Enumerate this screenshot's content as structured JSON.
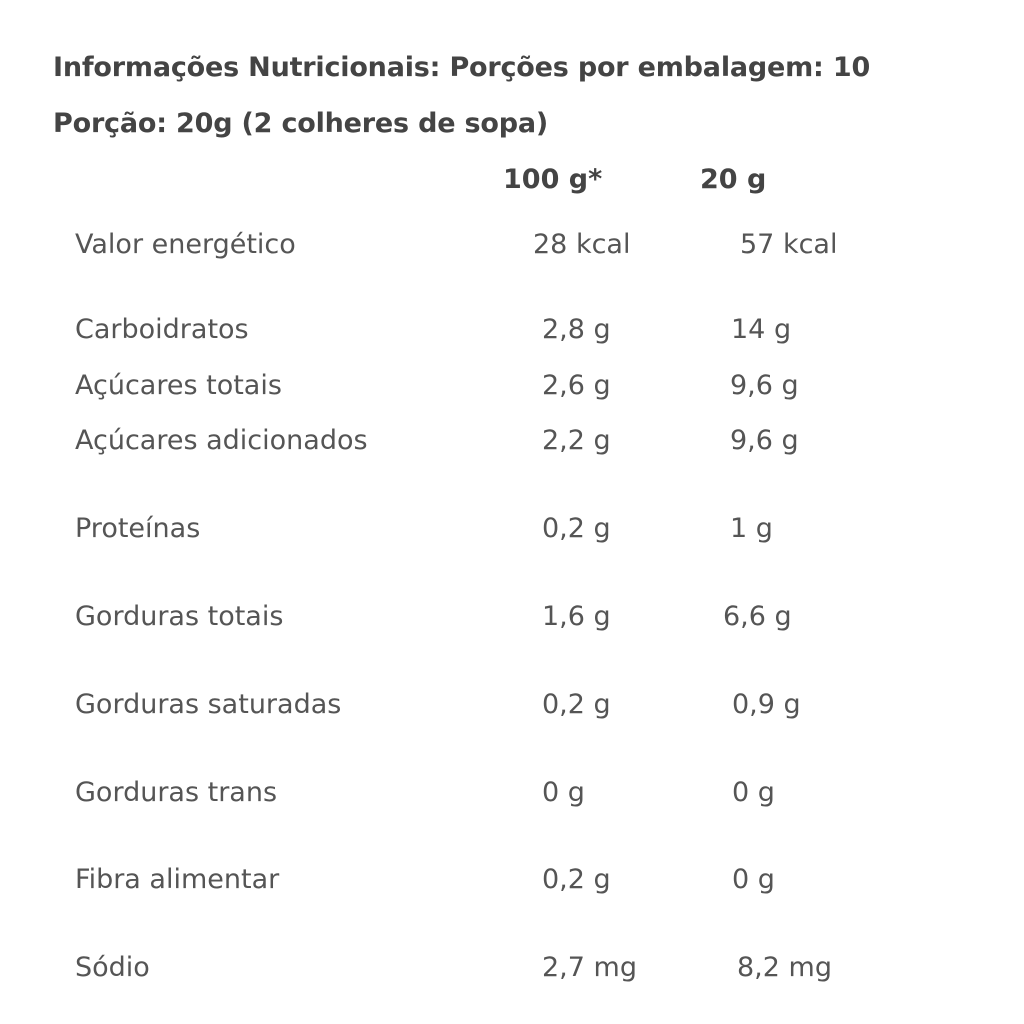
{
  "header": {
    "title": "Informações Nutricionais: Porções por embalagem: 10",
    "serving": "Porção: 20g (2 colheres de sopa)"
  },
  "columns": {
    "per_100": "100 g*",
    "per_20": "20 g"
  },
  "rows": [
    {
      "name": "Valor energético",
      "per_100": "28 kcal",
      "per_20": "57 kcal"
    },
    {
      "name": "Carboidratos",
      "per_100": "2,8 g",
      "per_20": "14 g"
    },
    {
      "name": "Açúcares totais",
      "per_100": "2,6 g",
      "per_20": "9,6 g"
    },
    {
      "name": "Açúcares adicionados",
      "per_100": "2,2 g",
      "per_20": "9,6 g"
    },
    {
      "name": "Proteínas",
      "per_100": "0,2 g",
      "per_20": "1 g"
    },
    {
      "name": "Gorduras totais",
      "per_100": "1,6 g",
      "per_20": "6,6 g"
    },
    {
      "name": "Gorduras saturadas",
      "per_100": "0,2 g",
      "per_20": "0,9 g"
    },
    {
      "name": "Gorduras trans",
      "per_100": "0 g",
      "per_20": "0 g"
    },
    {
      "name": "Fibra alimentar",
      "per_100": "0,2 g",
      "per_20": "0 g"
    },
    {
      "name": "Sódio",
      "per_100": "2,7 mg",
      "per_20": "8,2 mg"
    }
  ]
}
